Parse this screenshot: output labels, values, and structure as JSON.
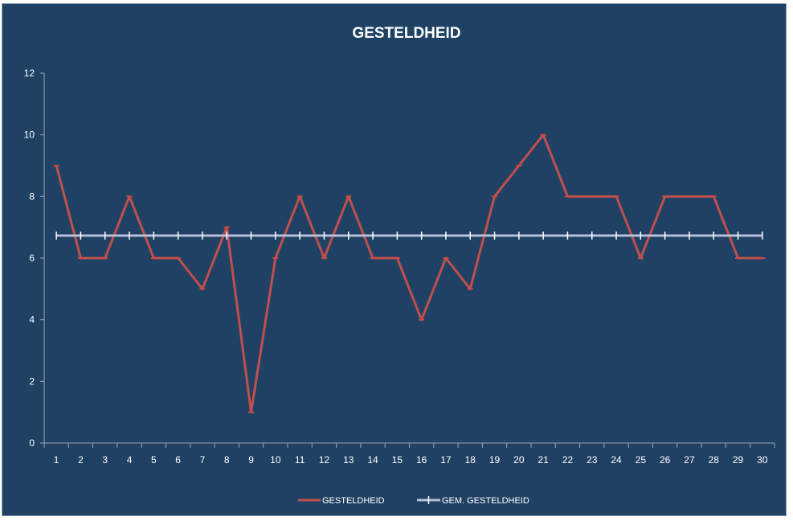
{
  "chart_data": {
    "type": "line",
    "title": "GESTELDHEID",
    "xlabel": "",
    "ylabel": "",
    "categories": [
      "1",
      "2",
      "3",
      "4",
      "5",
      "6",
      "7",
      "8",
      "9",
      "10",
      "11",
      "12",
      "13",
      "14",
      "15",
      "16",
      "17",
      "18",
      "19",
      "20",
      "21",
      "22",
      "23",
      "24",
      "25",
      "26",
      "27",
      "28",
      "29",
      "30"
    ],
    "ylim": [
      0,
      12
    ],
    "yticks": [
      0,
      2,
      4,
      6,
      8,
      10,
      12
    ],
    "grid": false,
    "legend_position": "bottom",
    "series": [
      {
        "name": "GESTELDHEID",
        "color": "#c0504d",
        "values": [
          9,
          6,
          6,
          8,
          6,
          6,
          5,
          7,
          1,
          6,
          8,
          6,
          8,
          6,
          6,
          4,
          6,
          5,
          8,
          9,
          10,
          8,
          8,
          8,
          6,
          8,
          8,
          8,
          6,
          6
        ]
      },
      {
        "name": "GEM. GESTELDHEID",
        "color": "#b9bfd9",
        "values": [
          6.73,
          6.73,
          6.73,
          6.73,
          6.73,
          6.73,
          6.73,
          6.73,
          6.73,
          6.73,
          6.73,
          6.73,
          6.73,
          6.73,
          6.73,
          6.73,
          6.73,
          6.73,
          6.73,
          6.73,
          6.73,
          6.73,
          6.73,
          6.73,
          6.73,
          6.73,
          6.73,
          6.73,
          6.73,
          6.73
        ]
      }
    ]
  }
}
